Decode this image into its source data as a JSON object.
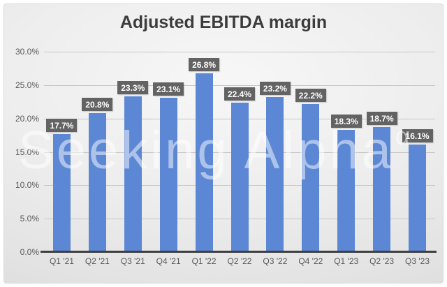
{
  "title": "Adjusted EBITDA margin",
  "watermark": {
    "text": "Seeking Alpha",
    "superscript": "α"
  },
  "colors": {
    "bar": "#5C87D4",
    "label_bg": "#636363",
    "label_text": "#FFFFFF",
    "title_text": "#3C3C3C",
    "axis_text": "#595959",
    "gridline": "#C7C7C7",
    "axis_line": "#3F3F3F",
    "background_light": "#F7F7F7",
    "background_dark": "#D2D2D2"
  },
  "chart_data": {
    "type": "bar",
    "title": "Adjusted EBITDA margin",
    "categories": [
      "Q1 '21",
      "Q2 '21",
      "Q3 '21",
      "Q4 '21",
      "Q1 '22",
      "Q2 '22",
      "Q3 '22",
      "Q4 '22",
      "Q1 '23",
      "Q2 '23",
      "Q3 '23"
    ],
    "values": [
      17.7,
      20.8,
      23.3,
      23.1,
      26.8,
      22.4,
      23.2,
      22.2,
      18.3,
      18.7,
      16.1
    ],
    "value_labels": [
      "17.7%",
      "20.8%",
      "23.3%",
      "23.1%",
      "26.8%",
      "22.4%",
      "23.2%",
      "22.2%",
      "18.3%",
      "18.7%",
      "16.1%"
    ],
    "xlabel": "",
    "ylabel": "",
    "ylim": [
      0,
      30
    ],
    "ytick_values": [
      0,
      5,
      10,
      15,
      20,
      25,
      30
    ],
    "ytick_labels": [
      "0.0%",
      "5.0%",
      "10.0%",
      "15.0%",
      "20.0%",
      "25.0%",
      "30.0%"
    ],
    "grid": true,
    "legend": false,
    "data_labels_position": "outside-end"
  }
}
